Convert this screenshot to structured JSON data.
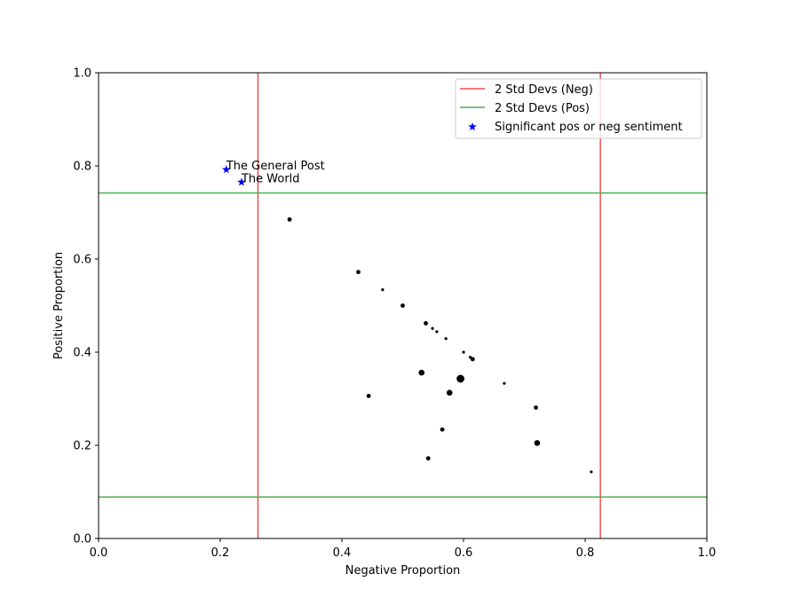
{
  "chart_data": {
    "type": "scatter",
    "title": "",
    "xlabel": "Negative Proportion",
    "ylabel": "Positive Proportion",
    "xlim": [
      0.0,
      1.0
    ],
    "ylim": [
      0.0,
      1.0
    ],
    "xticks": [
      "0.0",
      "0.2",
      "0.4",
      "0.6",
      "0.8",
      "1.0"
    ],
    "yticks": [
      "0.0",
      "0.2",
      "0.4",
      "0.6",
      "0.8",
      "1.0"
    ],
    "grid": false,
    "legend_position": "top-right",
    "points": [
      {
        "x": 0.314,
        "y": 0.685,
        "size": "small"
      },
      {
        "x": 0.427,
        "y": 0.572,
        "size": "small"
      },
      {
        "x": 0.467,
        "y": 0.534,
        "size": "tiny"
      },
      {
        "x": 0.5,
        "y": 0.5,
        "size": "small"
      },
      {
        "x": 0.538,
        "y": 0.462,
        "size": "small"
      },
      {
        "x": 0.549,
        "y": 0.451,
        "size": "tiny"
      },
      {
        "x": 0.556,
        "y": 0.444,
        "size": "tiny"
      },
      {
        "x": 0.571,
        "y": 0.429,
        "size": "tiny"
      },
      {
        "x": 0.6,
        "y": 0.4,
        "size": "tiny"
      },
      {
        "x": 0.611,
        "y": 0.389,
        "size": "tiny"
      },
      {
        "x": 0.615,
        "y": 0.385,
        "size": "small"
      },
      {
        "x": 0.667,
        "y": 0.333,
        "size": "tiny"
      },
      {
        "x": 0.531,
        "y": 0.356,
        "size": "medium"
      },
      {
        "x": 0.595,
        "y": 0.343,
        "size": "large"
      },
      {
        "x": 0.577,
        "y": 0.313,
        "size": "medium"
      },
      {
        "x": 0.444,
        "y": 0.306,
        "size": "small"
      },
      {
        "x": 0.719,
        "y": 0.281,
        "size": "small"
      },
      {
        "x": 0.565,
        "y": 0.234,
        "size": "small"
      },
      {
        "x": 0.721,
        "y": 0.205,
        "size": "medium"
      },
      {
        "x": 0.542,
        "y": 0.172,
        "size": "small"
      },
      {
        "x": 0.81,
        "y": 0.143,
        "size": "tiny"
      }
    ],
    "significant_points": [
      {
        "x": 0.21,
        "y": 0.792,
        "label": "The General Post"
      },
      {
        "x": 0.235,
        "y": 0.765,
        "label": "The World"
      }
    ],
    "reference_lines": [
      {
        "orientation": "vertical",
        "values": [
          0.262,
          0.825
        ],
        "series": "2 Std Devs (Neg)",
        "color": "#e8514f"
      },
      {
        "orientation": "horizontal",
        "values": [
          0.742,
          0.089
        ],
        "series": "2 Std Devs (Pos)",
        "color": "#4caf50"
      }
    ],
    "legend": [
      {
        "label": "2 Std Devs (Neg)",
        "kind": "line",
        "color": "#e8514f"
      },
      {
        "label": "2 Std Devs (Pos)",
        "kind": "line",
        "color": "#4caf50"
      },
      {
        "label": "Significant pos or neg sentiment",
        "kind": "star",
        "color": "#0000ff"
      }
    ],
    "colors": {
      "points": "#000000",
      "significant": "#0000ff",
      "neg_line": "#e8514f",
      "pos_line": "#4caf50"
    }
  }
}
